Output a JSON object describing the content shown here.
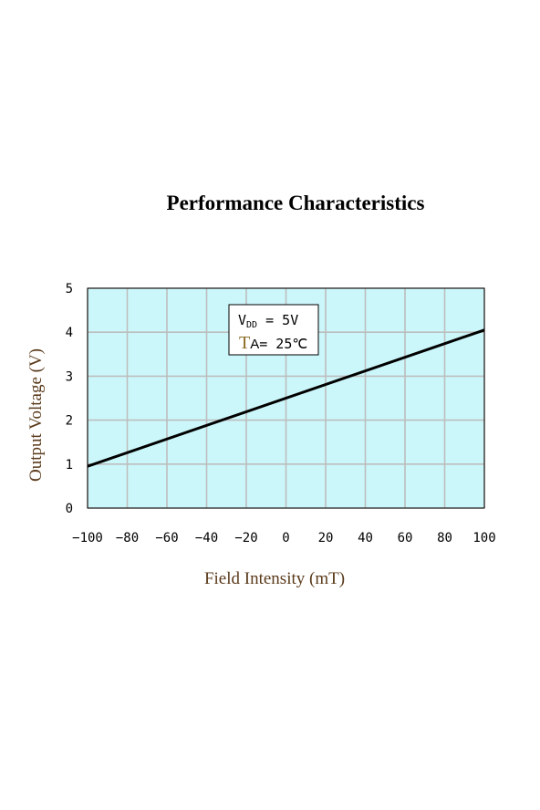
{
  "title": "Performance Characteristics",
  "chart_data": {
    "type": "line",
    "title": "Performance Characteristics",
    "xlabel": "Field Intensity (mT)",
    "ylabel": "Output Voltage (V)",
    "xlim": [
      -100,
      100
    ],
    "ylim": [
      0,
      5
    ],
    "x_ticks": [
      -100,
      -80,
      -60,
      -40,
      -20,
      0,
      20,
      40,
      60,
      80,
      100
    ],
    "y_ticks": [
      0,
      1,
      2,
      3,
      4,
      5
    ],
    "x_tick_labels": [
      "−100",
      "−80",
      "−60",
      "−40",
      "−20",
      "0",
      "20",
      "40",
      "60",
      "80",
      "100"
    ],
    "y_tick_labels": [
      "0",
      "1",
      "2",
      "3",
      "4",
      "5"
    ],
    "grid": true,
    "series": [
      {
        "x": [
          -100,
          100
        ],
        "y": [
          0.95,
          4.05
        ]
      }
    ],
    "annotation": {
      "vdd_label": "V",
      "vdd_sub": "DD",
      "vdd_value": " = 5V",
      "ta_label": "T",
      "ta_sub": "A",
      "ta_value": "= 25℃"
    },
    "colors": {
      "plot_bg": "#ccf7fa",
      "grid": "#bdbdbd",
      "line": "#000000",
      "label": "#5a3a1a"
    }
  }
}
